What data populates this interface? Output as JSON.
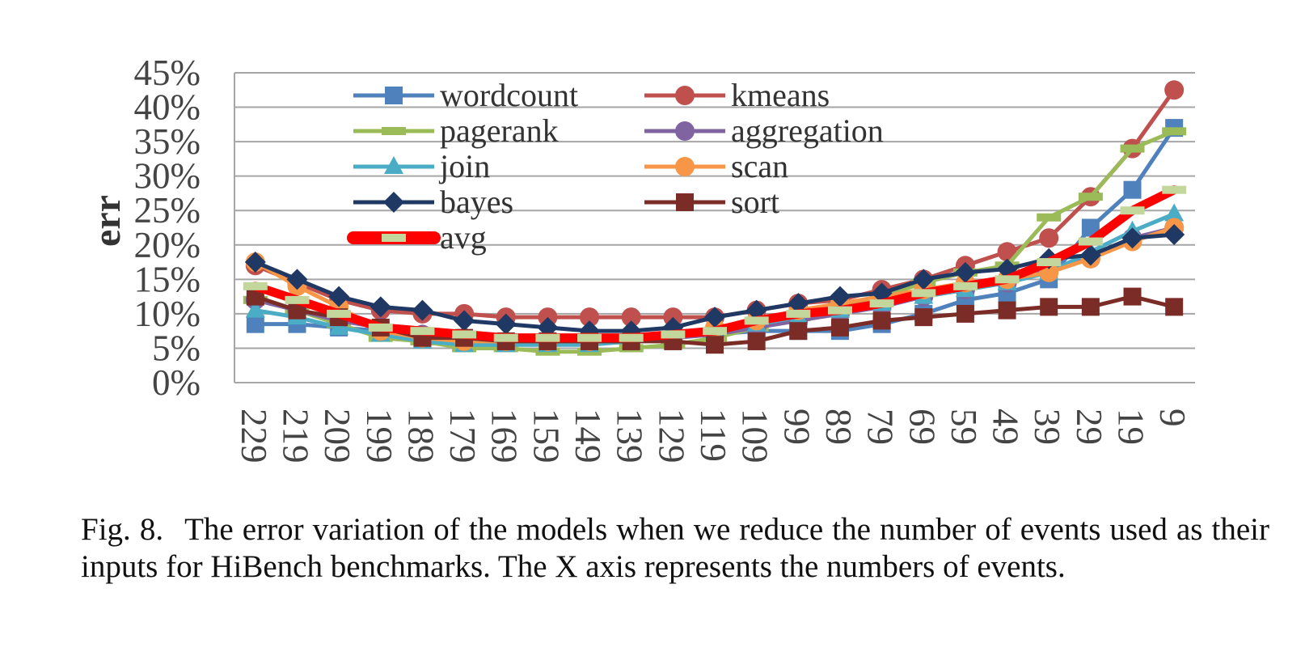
{
  "chart_data": {
    "type": "line",
    "ylabel": "err",
    "xlabel": "",
    "y_tick_labels": [
      "0%",
      "5%",
      "10%",
      "15%",
      "20%",
      "25%",
      "30%",
      "35%",
      "40%",
      "45%"
    ],
    "ylim": [
      0,
      45
    ],
    "grid": true,
    "legend_placement": "top-left (inside plot), two columns",
    "categories": [
      "229",
      "219",
      "209",
      "199",
      "189",
      "179",
      "169",
      "159",
      "149",
      "139",
      "129",
      "119",
      "109",
      "99",
      "89",
      "79",
      "69",
      "59",
      "49",
      "39",
      "29",
      "19",
      "9"
    ],
    "series": [
      {
        "name": "wordcount",
        "color": "#4f81bd",
        "marker": "square",
        "values": [
          8.5,
          8.5,
          8,
          7.5,
          6.5,
          6,
          6,
          6,
          6,
          6,
          6.5,
          7,
          7.5,
          7.5,
          7.5,
          8.5,
          10,
          12,
          13,
          15,
          22.5,
          28,
          37
        ]
      },
      {
        "name": "kmeans",
        "color": "#c0504d",
        "marker": "circle",
        "values": [
          17,
          14.5,
          12,
          10.5,
          10,
          10,
          9.5,
          9.5,
          9.5,
          9.5,
          9.5,
          9.5,
          10.5,
          11.5,
          12,
          13.5,
          15,
          17,
          19,
          21,
          27,
          34,
          42.5
        ]
      },
      {
        "name": "pagerank",
        "color": "#9bbb59",
        "marker": "dash",
        "values": [
          12,
          10.5,
          8.5,
          6.5,
          6,
          5,
          5,
          4.5,
          4.5,
          5,
          5.5,
          6.5,
          8,
          9.5,
          11,
          12.5,
          14.5,
          16,
          17,
          24,
          27,
          34,
          36.5
        ]
      },
      {
        "name": "aggregation",
        "color": "#8064a2",
        "marker": "circle",
        "values": [
          12,
          10.5,
          9,
          8,
          7,
          6.5,
          6,
          6,
          6,
          6.5,
          6.5,
          7,
          8,
          9,
          10,
          11,
          12.5,
          13.5,
          14.5,
          16.5,
          18,
          21,
          22.5
        ]
      },
      {
        "name": "join",
        "color": "#4bacc6",
        "marker": "triangle",
        "values": [
          10.5,
          9.5,
          8,
          7,
          6,
          5.5,
          5.5,
          5.5,
          5.5,
          6,
          6.5,
          7.5,
          8.5,
          9.5,
          10.5,
          11.5,
          12.5,
          13.5,
          14.5,
          16,
          19,
          22,
          24.5
        ]
      },
      {
        "name": "scan",
        "color": "#f79646",
        "marker": "circle",
        "values": [
          17.5,
          14,
          11,
          7.5,
          6.5,
          6,
          6,
          6,
          6,
          6.5,
          7,
          8,
          9,
          10.5,
          11.5,
          12.5,
          13.5,
          14.5,
          15,
          16,
          18,
          20.5,
          22.5
        ]
      },
      {
        "name": "bayes",
        "color": "#1f3864",
        "marker": "diamond",
        "values": [
          17.5,
          15,
          12.5,
          11,
          10.5,
          9,
          8.5,
          8,
          7.5,
          7.5,
          8,
          9.5,
          10.5,
          11.5,
          12.5,
          13,
          15,
          16,
          16.5,
          18,
          18.5,
          21,
          21.5
        ]
      },
      {
        "name": "sort",
        "color": "#7b2c26",
        "marker": "square",
        "values": [
          12.5,
          10.5,
          9.5,
          8,
          6.5,
          6.5,
          6,
          6,
          6,
          6,
          6,
          5.5,
          6,
          7.5,
          8,
          9,
          9.5,
          10,
          10.5,
          11,
          11,
          12.5,
          11
        ]
      },
      {
        "name": "avg",
        "color": "#ff0000",
        "marker": "dash",
        "marker_color": "#c3d69b",
        "values": [
          14,
          12,
          10,
          8,
          7.5,
          7,
          6.5,
          6.5,
          6.5,
          6.5,
          7,
          7.5,
          9,
          10,
          10.5,
          11.5,
          13,
          14,
          15,
          17.5,
          20.5,
          25,
          28
        ]
      }
    ]
  },
  "caption": {
    "label": "Fig. 8.",
    "text": "The error variation of the models when we reduce the number of events used as their inputs for HiBench benchmarks. The X axis represents the numbers of events."
  }
}
